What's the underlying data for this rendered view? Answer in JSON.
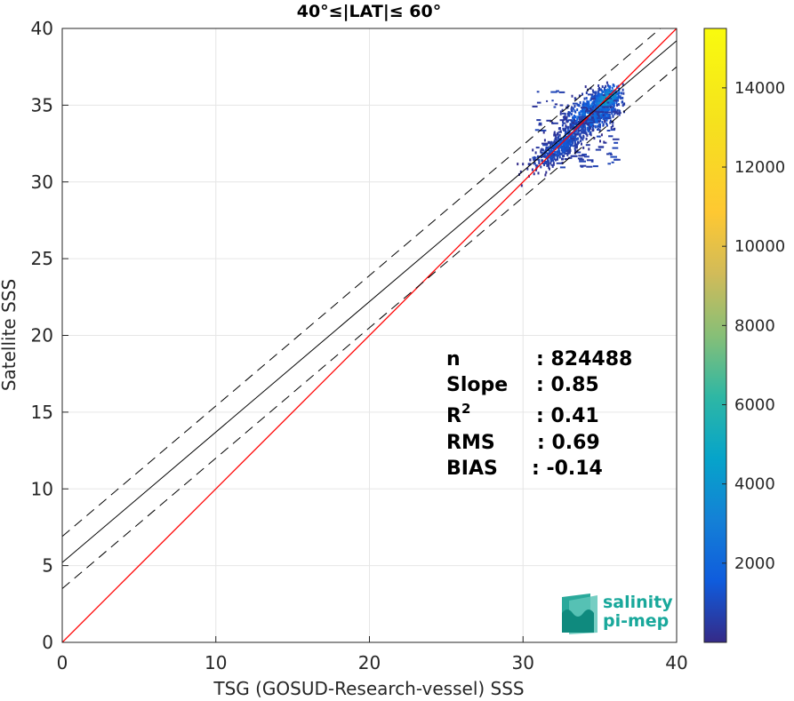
{
  "chart_data": {
    "type": "heatmap",
    "title": "40°≤|LAT|≤ 60°",
    "xlabel": "TSG (GOSUD-Research-vessel) SSS",
    "ylabel": "Satellite SSS",
    "xlim": [
      0,
      40
    ],
    "ylim": [
      0,
      40
    ],
    "x_ticks": [
      0,
      10,
      20,
      30,
      40
    ],
    "y_ticks": [
      0,
      5,
      10,
      15,
      20,
      25,
      30,
      35,
      40
    ],
    "grid": true,
    "colorbar": {
      "colormap": "parula",
      "range": [
        0,
        15500
      ],
      "ticks": [
        2000,
        4000,
        6000,
        8000,
        10000,
        12000,
        14000
      ]
    },
    "lines": [
      {
        "role": "identity",
        "color": "#ff0000",
        "style": "solid",
        "slope": 1.0,
        "intercept": 0
      },
      {
        "role": "regression",
        "color": "#000000",
        "style": "solid",
        "slope": 0.85,
        "intercept": 5.2
      },
      {
        "role": "regression-upper",
        "color": "#000000",
        "style": "dashed",
        "slope": 0.85,
        "intercept": 6.9
      },
      {
        "role": "regression-lower",
        "color": "#000000",
        "style": "dashed",
        "slope": 0.85,
        "intercept": 3.5
      }
    ],
    "density_clusters": [
      {
        "x": 34.5,
        "y": 34.6,
        "sx": 1.0,
        "sy": 0.8,
        "rho": 0.55,
        "n": 700,
        "weight": 0.35
      },
      {
        "x": 32.5,
        "y": 32.5,
        "sx": 1.0,
        "sy": 0.8,
        "rho": 0.8,
        "n": 450,
        "weight": 0.2
      },
      {
        "x": 35.4,
        "y": 35.5,
        "sx": 0.4,
        "sy": 0.4,
        "rho": 0.5,
        "n": 250,
        "weight": 0.75
      }
    ],
    "annotations": [
      {
        "label": "n",
        "value": ": 824488"
      },
      {
        "label": "Slope",
        "value": ": 0.85"
      },
      {
        "label": "R",
        "sup": "2",
        "value": ": 0.41"
      },
      {
        "label": "RMS",
        "value": ": 0.69"
      },
      {
        "label": "BIAS",
        "value": ": -0.14"
      }
    ]
  },
  "logo": {
    "line1": "salinity",
    "line2": "pi-mep",
    "color": "#19a89b"
  }
}
